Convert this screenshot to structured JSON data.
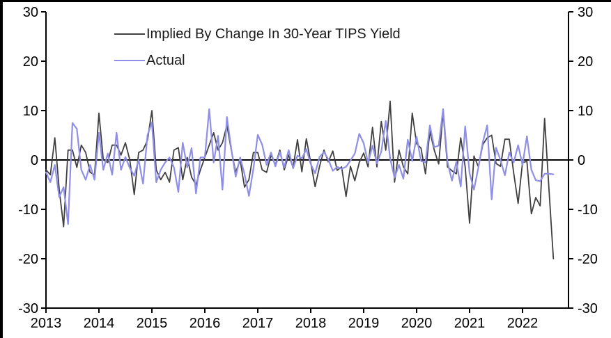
{
  "chart_data": {
    "type": "line",
    "title": "",
    "x_start": "2013-01",
    "x_interval": "monthly",
    "x_tick_labels": [
      "2013",
      "2014",
      "2015",
      "2016",
      "2017",
      "2018",
      "2019",
      "2020",
      "2021",
      "2022"
    ],
    "y_ticks": [
      30,
      20,
      10,
      0,
      -10,
      -20,
      -30
    ],
    "y_tick_labels": [
      "30",
      "20",
      "10",
      "0",
      "-10",
      "-20",
      "-30"
    ],
    "ylim": [
      -30,
      30
    ],
    "grid": false,
    "zero_line": true,
    "legend_position": "top-left-inside",
    "axis_color": "#000000",
    "series": [
      {
        "name": "Implied By Change In 30-Year TIPS Yield",
        "color": "#404040",
        "values": [
          -2,
          -3,
          4.5,
          -6,
          -13.5,
          2,
          2,
          -1.5,
          3,
          1.5,
          -2.5,
          -3,
          9.5,
          0,
          -0.5,
          3,
          3,
          1,
          3.5,
          0,
          -7,
          1.5,
          2,
          4,
          10,
          -2,
          -4,
          -2.5,
          -4.5,
          2,
          2.5,
          -4,
          0.5,
          -3.5,
          -5,
          -2,
          0.5,
          3,
          5.5,
          2,
          3.5,
          7,
          2,
          -2.5,
          0,
          -5.5,
          -4,
          1.5,
          1.5,
          -2,
          -2.5,
          1,
          -1,
          2,
          -2,
          1,
          -1.5,
          4.1,
          -2.4,
          4.3,
          -0.5,
          -5.4,
          -1.3,
          2,
          -0.4,
          1.8,
          -2.1,
          -1.4,
          -7.4,
          -1.3,
          -4.2,
          -0.5,
          1.4,
          -1.4,
          6.6,
          -1.4,
          7.8,
          2,
          11.9,
          -4.5,
          2,
          -1.4,
          -2.8,
          9.5,
          3.3,
          2.4,
          -2.8,
          5.8,
          2,
          -0.8,
          9.7,
          -1.4,
          -2.2,
          -2.8,
          4.5,
          -1.4,
          -12.8,
          0.8,
          -1.4,
          3.1,
          4.5,
          5,
          -0.7,
          -1.3,
          4.2,
          4.2,
          -2.6,
          -8.8,
          -0.5,
          -0.3,
          -10.9,
          -7.6,
          -9.3,
          8.4,
          -6,
          -20
        ]
      },
      {
        "name": "Actual",
        "color": "#8f8fe8",
        "values": [
          -2.5,
          -4.5,
          -1,
          -7.5,
          -5.5,
          -13,
          7.5,
          6.3,
          -2,
          -4,
          -1,
          -4,
          5.5,
          -2,
          1.3,
          -3,
          5.5,
          -2,
          0.6,
          -1.6,
          -3.2,
          0,
          -4.8,
          5,
          7.6,
          -4.5,
          -2,
          -0.5,
          0.5,
          -1.5,
          -6.5,
          3.5,
          -1.5,
          2.4,
          -6.8,
          0.5,
          0.5,
          10.3,
          -0.5,
          4.9,
          -6,
          8.7,
          2.2,
          -3.4,
          0.5,
          -2.9,
          -7.3,
          -1.8,
          5.1,
          3.1,
          -1,
          1.5,
          -1.3,
          1.6,
          -1.5,
          2,
          -1.7,
          0.9,
          0.3,
          2.2,
          -0.8,
          -2.7,
          0.6,
          1.6,
          0.1,
          -2.2,
          -1.4,
          -1.8,
          -1.4,
          -0.1,
          1.3,
          5.3,
          3.4,
          -0.6,
          2.9,
          -0.7,
          1.7,
          7.9,
          0.3,
          -3.6,
          -1,
          -3.8,
          4.1,
          -0.2,
          4.7,
          -0.2,
          -0.5,
          7,
          2.6,
          2.9,
          10.3,
          -0.4,
          -4.2,
          -0.4,
          -5.4,
          6.8,
          -2.7,
          -6,
          -1.5,
          3.6,
          7,
          -8,
          2.5,
          0,
          -3.1,
          1.5,
          -0.5,
          3,
          -1,
          4.8,
          -2,
          -4.1,
          -4.3,
          -2.8,
          -2.8,
          -2.9
        ]
      }
    ]
  }
}
